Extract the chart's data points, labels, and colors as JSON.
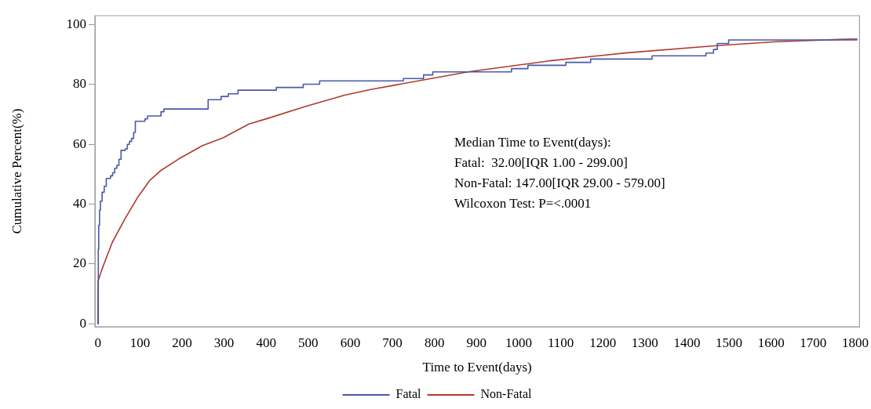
{
  "chart_data": {
    "type": "line",
    "xlabel": "Time to Event(days)",
    "ylabel": "Cumulative Percent(%)",
    "xlim": [
      -7,
      1810
    ],
    "ylim": [
      -1,
      103
    ],
    "xticks": [
      0,
      100,
      200,
      300,
      400,
      500,
      600,
      700,
      800,
      900,
      1000,
      1100,
      1200,
      1300,
      1400,
      1500,
      1600,
      1700,
      1800
    ],
    "yticks": [
      0,
      20,
      40,
      60,
      80,
      100
    ],
    "grid": false,
    "legend": "bottom",
    "marker": "none",
    "line_style": "solid",
    "annotations": [
      "Median Time to Event(days):",
      "Fatal:  32.00[IQR 1.00 - 299.00]",
      "Non-Fatal: 147.00[IQR 29.00 - 579.00]",
      "Wilcoxon Test: P=<.0001"
    ],
    "series": [
      {
        "name": "Fatal",
        "type": "step",
        "color": "#4a58a8",
        "x": [
          0,
          1,
          2,
          4,
          6,
          10,
          15,
          20,
          30,
          35,
          40,
          45,
          50,
          55,
          65,
          70,
          75,
          80,
          85,
          89,
          112,
          118,
          150,
          157,
          200,
          262,
          270,
          293,
          310,
          333,
          424,
          488,
          527,
          726,
          774,
          796,
          983,
          1022,
          1112,
          1171,
          1317,
          1445,
          1463,
          1472,
          1499,
          1805
        ],
        "values": [
          0,
          25,
          33,
          38,
          41,
          44,
          46,
          48.6,
          49.5,
          50.5,
          52,
          53,
          55,
          58,
          58.5,
          60,
          61,
          62,
          64,
          67.7,
          68.5,
          69.5,
          70.9,
          71.8,
          71.8,
          74.9,
          74.9,
          76,
          76.9,
          78.1,
          79,
          80.1,
          81.2,
          82,
          83.2,
          84.2,
          85.3,
          86.4,
          87.4,
          88.5,
          89.6,
          90.5,
          91.7,
          93.7,
          94.9,
          94.9
        ]
      },
      {
        "name": "Non-Fatal",
        "type": "line",
        "color": "#b03a2e",
        "x": [
          0,
          0.5,
          9,
          34,
          64,
          95,
          123,
          150,
          193,
          249,
          298,
          359,
          402,
          494,
          586,
          648,
          706,
          882,
          1073,
          1258,
          1470,
          1612,
          1774,
          1805
        ],
        "values": [
          0,
          14.4,
          18,
          27.2,
          35,
          42.4,
          47.9,
          51.3,
          55.2,
          59.6,
          62.2,
          66.8,
          68.6,
          72.7,
          76.4,
          78.3,
          79.8,
          84.3,
          87.9,
          90.6,
          93,
          94.3,
          95.1,
          95.2
        ]
      }
    ]
  }
}
